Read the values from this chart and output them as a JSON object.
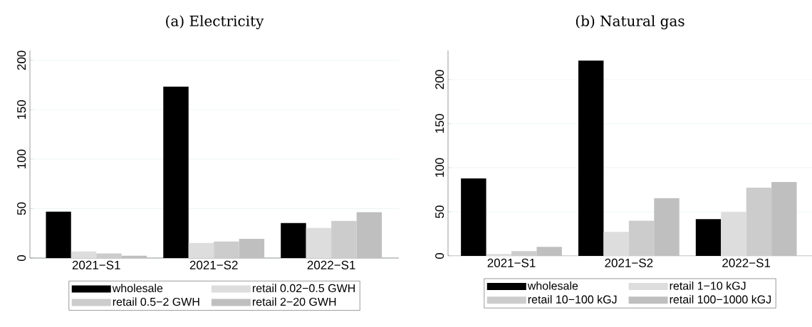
{
  "chart_data": [
    {
      "type": "bar",
      "title": "(a) Electricity",
      "categories": [
        "2021−S1",
        "2021−S2",
        "2022−S1"
      ],
      "series": [
        {
          "name": "wholesale",
          "color": "#000000",
          "values": [
            47,
            173.5,
            35.5
          ]
        },
        {
          "name": "retail 0.02−0.5 GWH",
          "color": "#dddddd",
          "values": [
            6.7,
            15.2,
            30.6
          ]
        },
        {
          "name": "retail 0.5−2 GWH",
          "color": "#cccccc",
          "values": [
            4.6,
            16.7,
            37.5
          ]
        },
        {
          "name": "retail 2−20 GWH",
          "color": "#bfbfbf",
          "values": [
            2.3,
            19.5,
            46.3
          ]
        }
      ],
      "ylim": [
        0,
        210
      ],
      "yticks": [
        0,
        50,
        100,
        150,
        200
      ],
      "grid": "y",
      "legend": "bottom"
    },
    {
      "type": "bar",
      "title": "(b) Natural gas",
      "categories": [
        "2021−S1",
        "2021−S2",
        "2022−S1"
      ],
      "series": [
        {
          "name": "wholesale",
          "color": "#000000",
          "values": [
            87.9,
            221.6,
            41.7
          ]
        },
        {
          "name": "retail 1−10 kGJ",
          "color": "#dddddd",
          "values": [
            2.3,
            27.3,
            49.7
          ]
        },
        {
          "name": "retail 10−100 kGJ",
          "color": "#cccccc",
          "values": [
            5.5,
            39.9,
            77.3
          ]
        },
        {
          "name": "retail 100−1000 kGJ",
          "color": "#bfbfbf",
          "values": [
            10.3,
            65.5,
            83.9
          ]
        }
      ],
      "ylim": [
        0,
        233
      ],
      "yticks": [
        0,
        50,
        100,
        150,
        200
      ],
      "grid": "y",
      "legend": "bottom"
    }
  ]
}
